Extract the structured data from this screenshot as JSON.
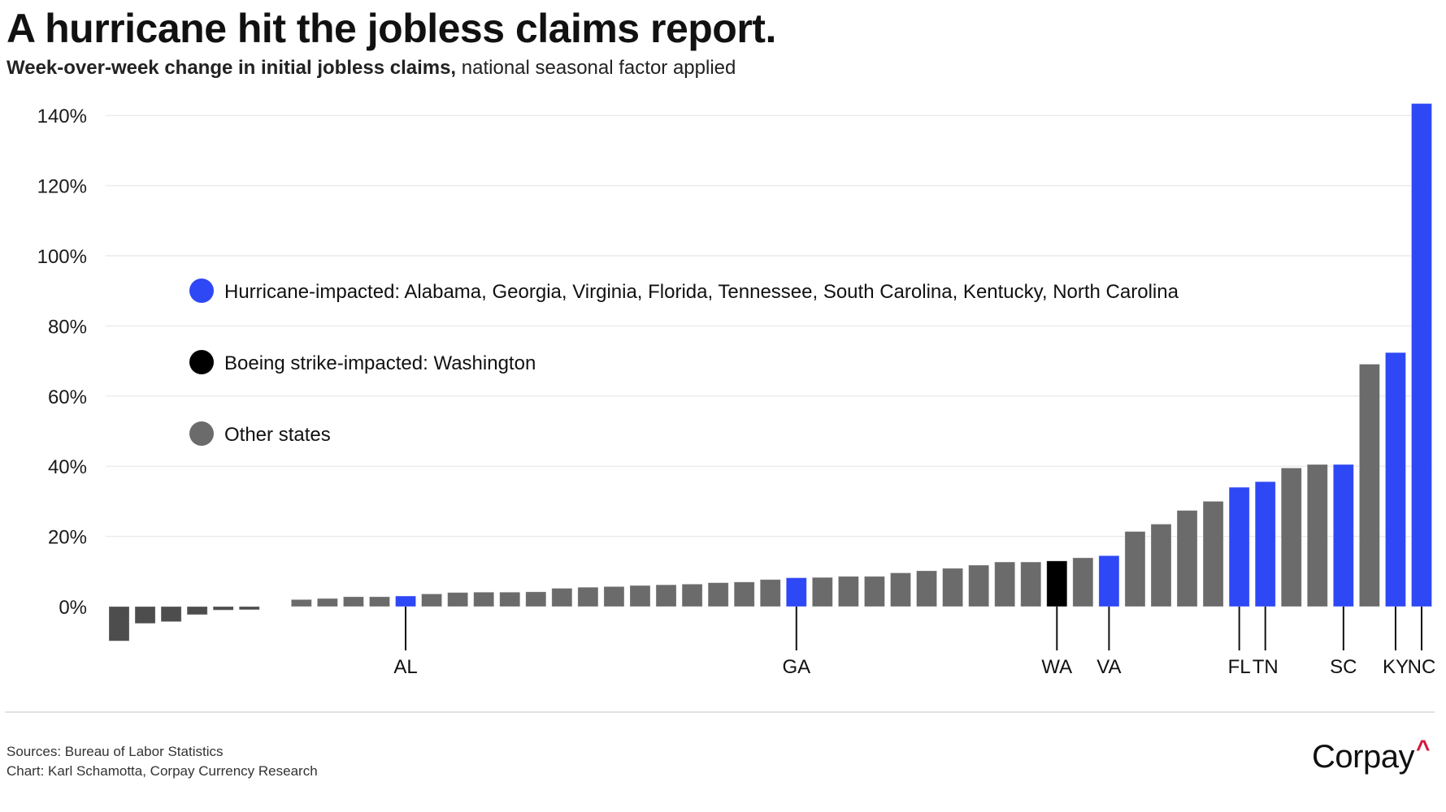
{
  "header": {
    "title": "A hurricane hit the jobless claims report.",
    "subtitle_bold": "Week-over-week change in initial jobless claims,",
    "subtitle_rest": " national seasonal factor applied"
  },
  "colors": {
    "hurricane": "#2f48f5",
    "boeing": "#000000",
    "other": "#6b6b6b",
    "other_negative": "#4d4d4d",
    "gridline": "#ececec",
    "leader": "#111111"
  },
  "legend": [
    {
      "key": "hurricane",
      "label": "Hurricane-impacted: Alabama, Georgia, Virginia, Florida, Tennessee, South Carolina, Kentucky, North Carolina"
    },
    {
      "key": "boeing",
      "label": "Boeing strike-impacted: Washington"
    },
    {
      "key": "other",
      "label": "Other states"
    }
  ],
  "chart_data": {
    "type": "bar",
    "title": "A hurricane hit the jobless claims report.",
    "subtitle": "Week-over-week change in initial jobless claims, national seasonal factor applied",
    "xlabel": "",
    "ylabel": "",
    "ylim": [
      -10,
      145
    ],
    "yticks": [
      0,
      20,
      40,
      60,
      80,
      100,
      120,
      140
    ],
    "ytick_labels": [
      "0%",
      "20%",
      "40%",
      "60%",
      "80%",
      "100%",
      "120%",
      "140%"
    ],
    "grid": true,
    "legend_position": "upper-left inside plot",
    "unit": "%",
    "bars": [
      {
        "label": "",
        "value": -9.8,
        "group": "other"
      },
      {
        "label": "",
        "value": -4.8,
        "group": "other"
      },
      {
        "label": "",
        "value": -4.3,
        "group": "other"
      },
      {
        "label": "",
        "value": -2.3,
        "group": "other"
      },
      {
        "label": "",
        "value": -1.0,
        "group": "other"
      },
      {
        "label": "",
        "value": -0.9,
        "group": "other"
      },
      {
        "label": "",
        "value": 0.0,
        "group": "other"
      },
      {
        "label": "",
        "value": 2.0,
        "group": "other"
      },
      {
        "label": "",
        "value": 2.3,
        "group": "other"
      },
      {
        "label": "",
        "value": 2.8,
        "group": "other"
      },
      {
        "label": "",
        "value": 2.8,
        "group": "other"
      },
      {
        "label": "AL",
        "value": 3.0,
        "group": "hurricane"
      },
      {
        "label": "",
        "value": 3.6,
        "group": "other"
      },
      {
        "label": "",
        "value": 4.0,
        "group": "other"
      },
      {
        "label": "",
        "value": 4.1,
        "group": "other"
      },
      {
        "label": "",
        "value": 4.1,
        "group": "other"
      },
      {
        "label": "",
        "value": 4.2,
        "group": "other"
      },
      {
        "label": "",
        "value": 5.2,
        "group": "other"
      },
      {
        "label": "",
        "value": 5.5,
        "group": "other"
      },
      {
        "label": "",
        "value": 5.7,
        "group": "other"
      },
      {
        "label": "",
        "value": 6.0,
        "group": "other"
      },
      {
        "label": "",
        "value": 6.2,
        "group": "other"
      },
      {
        "label": "",
        "value": 6.4,
        "group": "other"
      },
      {
        "label": "",
        "value": 6.8,
        "group": "other"
      },
      {
        "label": "",
        "value": 7.0,
        "group": "other"
      },
      {
        "label": "",
        "value": 7.7,
        "group": "other"
      },
      {
        "label": "GA",
        "value": 8.2,
        "group": "hurricane"
      },
      {
        "label": "",
        "value": 8.3,
        "group": "other"
      },
      {
        "label": "",
        "value": 8.6,
        "group": "other"
      },
      {
        "label": "",
        "value": 8.6,
        "group": "other"
      },
      {
        "label": "",
        "value": 9.6,
        "group": "other"
      },
      {
        "label": "",
        "value": 10.2,
        "group": "other"
      },
      {
        "label": "",
        "value": 10.9,
        "group": "other"
      },
      {
        "label": "",
        "value": 11.8,
        "group": "other"
      },
      {
        "label": "",
        "value": 12.7,
        "group": "other"
      },
      {
        "label": "",
        "value": 12.7,
        "group": "other"
      },
      {
        "label": "WA",
        "value": 13.0,
        "group": "boeing"
      },
      {
        "label": "",
        "value": 13.9,
        "group": "other"
      },
      {
        "label": "VA",
        "value": 14.5,
        "group": "hurricane"
      },
      {
        "label": "",
        "value": 21.4,
        "group": "other"
      },
      {
        "label": "",
        "value": 23.5,
        "group": "other"
      },
      {
        "label": "",
        "value": 27.4,
        "group": "other"
      },
      {
        "label": "",
        "value": 30.0,
        "group": "other"
      },
      {
        "label": "FL",
        "value": 34.0,
        "group": "hurricane"
      },
      {
        "label": "TN",
        "value": 35.6,
        "group": "hurricane"
      },
      {
        "label": "",
        "value": 39.5,
        "group": "other"
      },
      {
        "label": "",
        "value": 40.5,
        "group": "other"
      },
      {
        "label": "SC",
        "value": 40.5,
        "group": "hurricane"
      },
      {
        "label": "",
        "value": 69.1,
        "group": "other"
      },
      {
        "label": "KY",
        "value": 72.4,
        "group": "hurricane"
      },
      {
        "label": "NC",
        "value": 143.4,
        "group": "hurricane"
      }
    ]
  },
  "footer": {
    "sources": "Sources: Bureau of Labor Statistics",
    "credit": "Chart: Karl Schamotta, Corpay Currency Research"
  },
  "logo": {
    "text": "Corpay",
    "mark": "^"
  }
}
